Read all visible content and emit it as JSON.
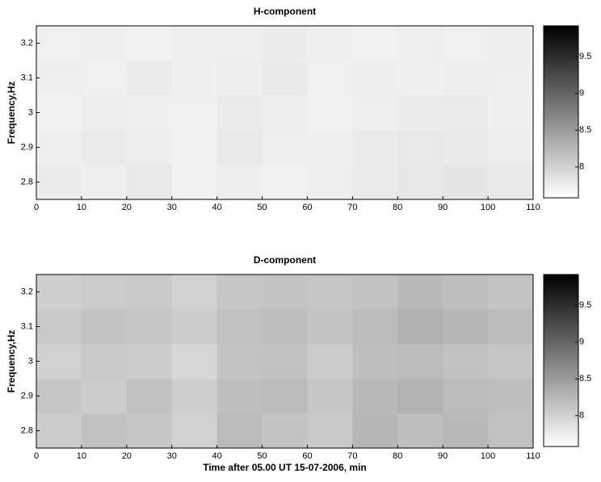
{
  "chart_data": [
    {
      "type": "heatmap",
      "title": "H-component",
      "ylabel": "Frequency,Hz",
      "xbins": [
        0,
        10,
        20,
        30,
        40,
        50,
        60,
        70,
        80,
        90,
        100,
        110
      ],
      "ybins": [
        2.75,
        2.85,
        2.95,
        3.05,
        3.15,
        3.25
      ],
      "z": [
        [
          7.75,
          7.72,
          7.78,
          7.7,
          7.74,
          7.71,
          7.73,
          7.76,
          7.8,
          7.82,
          7.78
        ],
        [
          7.72,
          7.76,
          7.74,
          7.7,
          7.78,
          7.73,
          7.72,
          7.75,
          7.79,
          7.77,
          7.74
        ],
        [
          7.7,
          7.74,
          7.72,
          7.71,
          7.76,
          7.74,
          7.7,
          7.73,
          7.75,
          7.76,
          7.72
        ],
        [
          7.73,
          7.71,
          7.75,
          7.72,
          7.74,
          7.77,
          7.71,
          7.74,
          7.72,
          7.74,
          7.73
        ],
        [
          7.71,
          7.73,
          7.7,
          7.72,
          7.73,
          7.75,
          7.72,
          7.7,
          7.73,
          7.71,
          7.74
        ]
      ],
      "xlim": [
        0,
        110
      ],
      "xticks": [
        0,
        10,
        20,
        30,
        40,
        50,
        60,
        70,
        80,
        90,
        100,
        110
      ],
      "ylim": [
        2.75,
        3.25
      ],
      "yticks": [
        2.8,
        2.9,
        3,
        3.1,
        3.2
      ],
      "clim": [
        7.58,
        9.92
      ],
      "cticks": [
        8,
        8.5,
        9,
        9.5
      ],
      "colormap": "gray"
    },
    {
      "type": "heatmap",
      "title": "D-component",
      "ylabel": "Frequency,Hz",
      "xlabel": "Time after 05.00 UT 15-07-2006, min",
      "xbins": [
        0,
        10,
        20,
        30,
        40,
        50,
        60,
        70,
        80,
        90,
        100,
        110
      ],
      "ybins": [
        2.75,
        2.85,
        2.95,
        3.05,
        3.15,
        3.25
      ],
      "z": [
        [
          8.05,
          8.15,
          8.1,
          8.0,
          8.2,
          8.12,
          8.08,
          8.25,
          8.18,
          8.22,
          8.15
        ],
        [
          8.1,
          8.05,
          8.15,
          8.02,
          8.18,
          8.2,
          8.1,
          8.22,
          8.28,
          8.2,
          8.18
        ],
        [
          8.0,
          8.08,
          8.05,
          7.95,
          8.12,
          8.15,
          8.05,
          8.18,
          8.2,
          8.15,
          8.1
        ],
        [
          8.08,
          8.12,
          8.1,
          8.05,
          8.15,
          8.18,
          8.12,
          8.2,
          8.3,
          8.25,
          8.2
        ],
        [
          8.02,
          8.06,
          8.08,
          8.0,
          8.1,
          8.12,
          8.1,
          8.15,
          8.22,
          8.18,
          8.12
        ]
      ],
      "xlim": [
        0,
        110
      ],
      "xticks": [
        0,
        10,
        20,
        30,
        40,
        50,
        60,
        70,
        80,
        90,
        100,
        110
      ],
      "ylim": [
        2.75,
        3.25
      ],
      "yticks": [
        2.8,
        2.9,
        3,
        3.1,
        3.2
      ],
      "clim": [
        7.58,
        9.92
      ],
      "cticks": [
        8,
        8.5,
        9,
        9.5
      ],
      "colormap": "gray"
    }
  ]
}
